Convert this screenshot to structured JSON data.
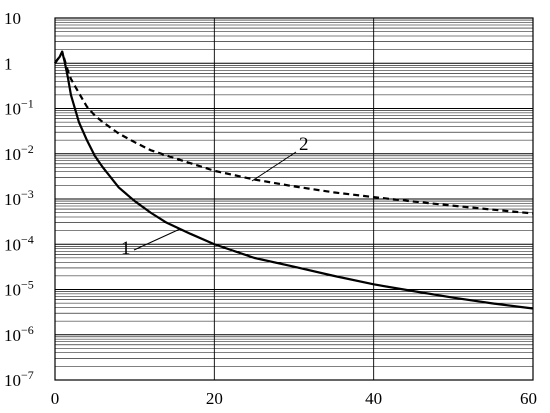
{
  "chart_data": {
    "type": "line",
    "title": "",
    "xlabel": "",
    "ylabel": "",
    "x_scale": "linear",
    "y_scale": "log",
    "xlim": [
      0,
      60
    ],
    "ylim": [
      1e-07,
      10
    ],
    "grid": {
      "x_major": [
        20,
        40
      ],
      "y_log_minor": true
    },
    "x_ticks": [
      {
        "value": 0,
        "label": "0"
      },
      {
        "value": 20,
        "label": "20"
      },
      {
        "value": 40,
        "label": "40"
      },
      {
        "value": 60,
        "label": "60"
      }
    ],
    "y_ticks": [
      {
        "value": 10,
        "base": "10",
        "exp": ""
      },
      {
        "value": 1,
        "base": "1",
        "exp": ""
      },
      {
        "value": 0.1,
        "base": "10",
        "exp": "−1"
      },
      {
        "value": 0.01,
        "base": "10",
        "exp": "−2"
      },
      {
        "value": 0.001,
        "base": "10",
        "exp": "−3"
      },
      {
        "value": 0.0001,
        "base": "10",
        "exp": "−4"
      },
      {
        "value": 1e-05,
        "base": "10",
        "exp": "−5"
      },
      {
        "value": 1e-06,
        "base": "10",
        "exp": "−6"
      },
      {
        "value": 1e-07,
        "base": "10",
        "exp": "−7"
      }
    ],
    "series": [
      {
        "label": "1",
        "style": "solid",
        "x": [
          0,
          0.3,
          0.6,
          0.9,
          1.2,
          1.6,
          2,
          3,
          4,
          5,
          6,
          8,
          10,
          12,
          14,
          17,
          20,
          25,
          30,
          35,
          40,
          45,
          50,
          55,
          60
        ],
        "y": [
          1,
          1.2,
          1.4,
          1.8,
          1.1,
          0.5,
          0.2,
          0.05,
          0.02,
          0.009,
          0.005,
          0.0018,
          0.0009,
          0.0005,
          0.0003,
          0.00017,
          0.0001,
          5e-05,
          3.2e-05,
          2e-05,
          1.3e-05,
          9.2e-06,
          6.6e-06,
          4.9e-06,
          3.8e-06
        ]
      },
      {
        "label": "2",
        "style": "dashed",
        "x": [
          0,
          0.3,
          0.6,
          0.9,
          1.2,
          1.6,
          2,
          3,
          4,
          5,
          6,
          8,
          10,
          12,
          15,
          20,
          25,
          30,
          35,
          40,
          45,
          50,
          55,
          60
        ],
        "y": [
          1,
          1.2,
          1.4,
          1.8,
          1.2,
          0.7,
          0.45,
          0.22,
          0.11,
          0.07,
          0.05,
          0.028,
          0.018,
          0.012,
          0.008,
          0.0042,
          0.0027,
          0.0019,
          0.0014,
          0.0011,
          0.00088,
          0.00071,
          0.00058,
          0.00048
        ]
      }
    ],
    "annotations": [
      {
        "text": "1",
        "series": "1"
      },
      {
        "text": "2",
        "series": "2"
      }
    ]
  }
}
